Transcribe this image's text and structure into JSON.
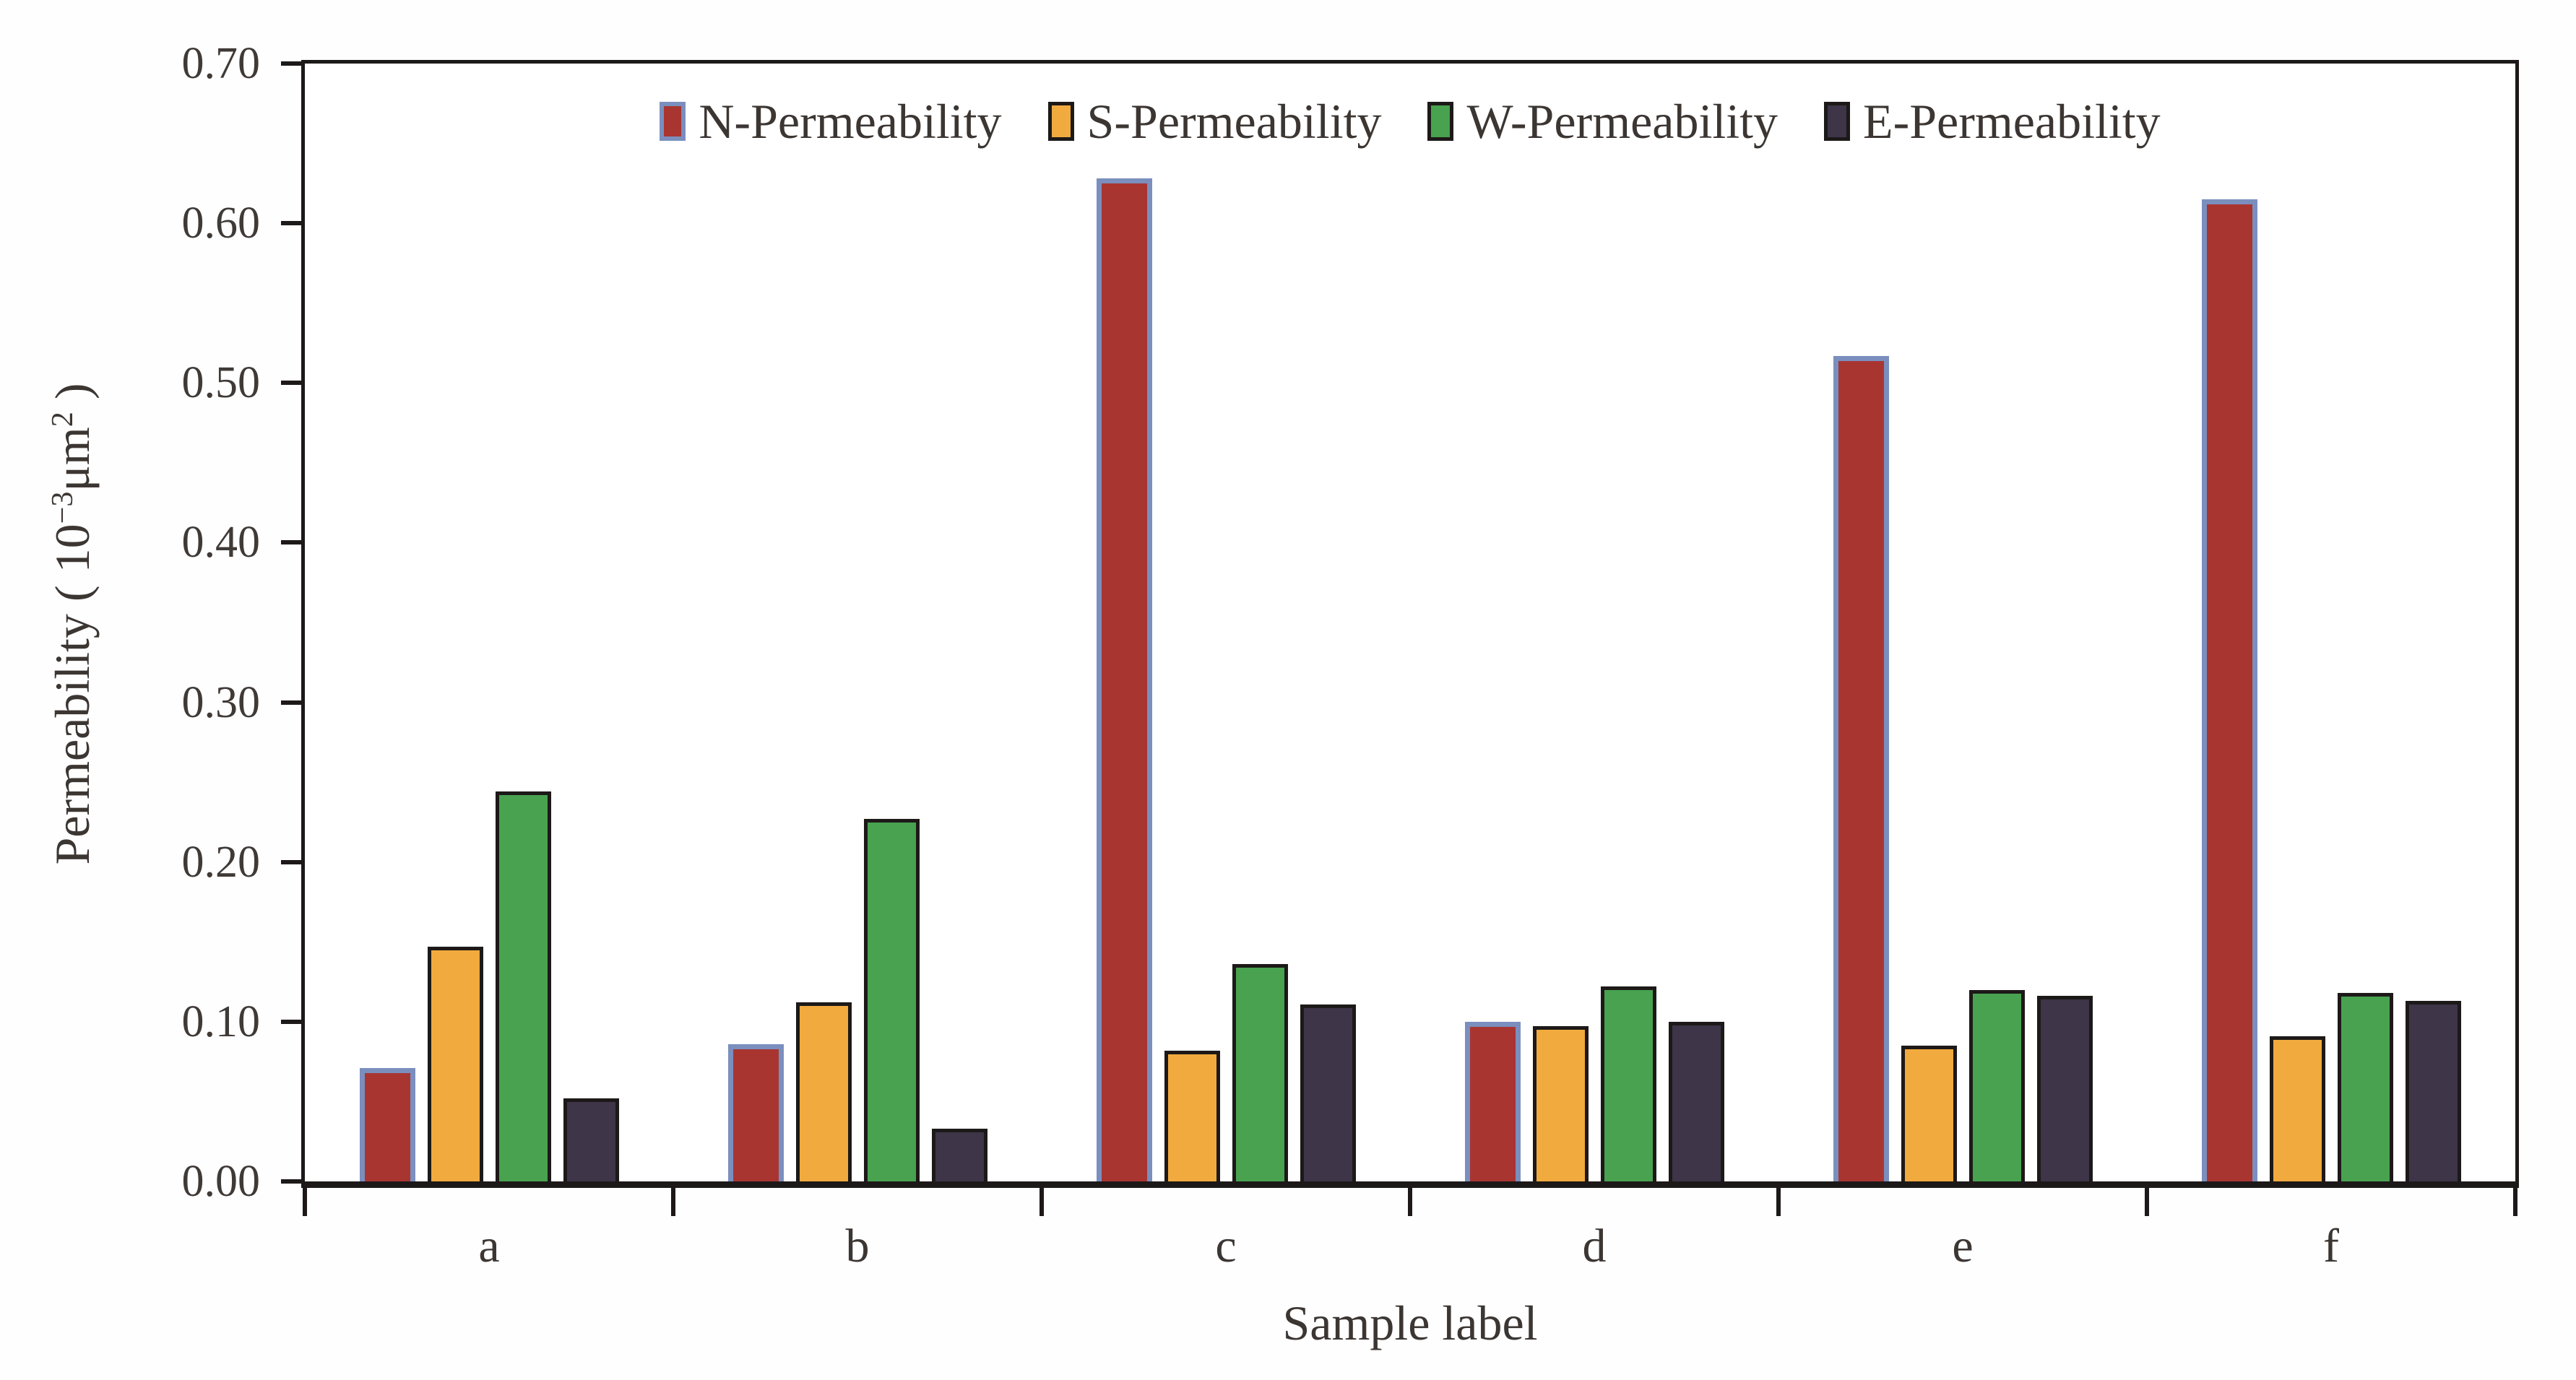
{
  "figure": {
    "xlabel": "Sample label",
    "ylabel": {
      "prefix": "Permeability ( 10",
      "exponent": "−3",
      "unit": "μm",
      "unit_exponent": "2",
      "suffix": " )"
    }
  },
  "chart_data": {
    "type": "bar",
    "title": "",
    "xlabel": "Sample label",
    "ylabel": "Permeability (10⁻³ μm²)",
    "categories": [
      "a",
      "b",
      "c",
      "d",
      "e",
      "f"
    ],
    "series": [
      {
        "name": "N-Permeability",
        "color": "#a93531",
        "border_color": "#7a8fbe",
        "values": [
          0.071,
          0.086,
          0.628,
          0.1,
          0.517,
          0.615
        ]
      },
      {
        "name": "S-Permeability",
        "color": "#f1aa3e",
        "border_color": "#1c1918",
        "values": [
          0.147,
          0.112,
          0.082,
          0.097,
          0.085,
          0.091
        ]
      },
      {
        "name": "W-Permeability",
        "color": "#48a24f",
        "border_color": "#1c1918",
        "values": [
          0.244,
          0.227,
          0.136,
          0.122,
          0.12,
          0.118
        ]
      },
      {
        "name": "E-Permeability",
        "color": "#3e3549",
        "border_color": "#1c1918",
        "values": [
          0.052,
          0.033,
          0.111,
          0.1,
          0.116,
          0.113
        ]
      }
    ],
    "ylim": [
      0.0,
      0.7
    ],
    "yticks": [
      "0.00",
      "0.10",
      "0.20",
      "0.30",
      "0.40",
      "0.50",
      "0.60",
      "0.70"
    ],
    "ytick_step": 0.1,
    "legend_position": "top-center-inside",
    "grid": false,
    "axis_color": "#1c1918",
    "text_color": "#3c3633"
  }
}
